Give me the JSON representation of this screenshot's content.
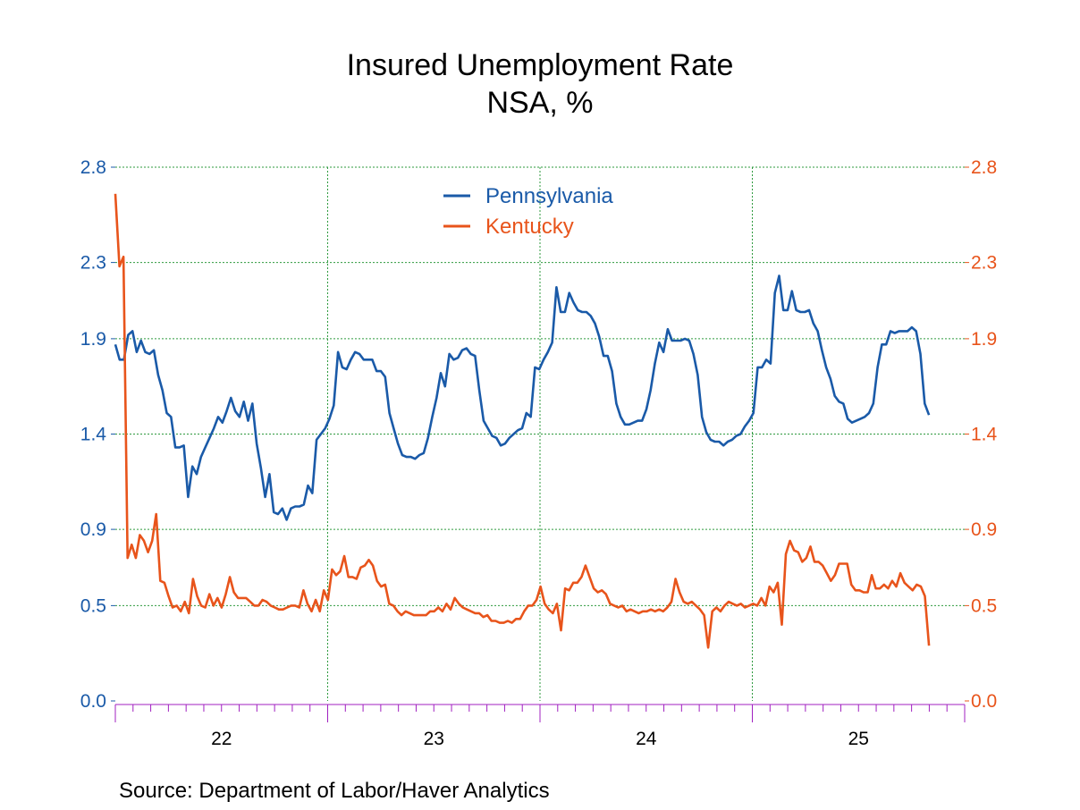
{
  "chart_data": {
    "type": "line",
    "title": "Insured Unemployment Rate",
    "subtitle": "NSA, %",
    "source": "Source:  Department of Labor/Haver Analytics",
    "x_start_year": 2021.5,
    "x_end_year": 2025.5,
    "x_tick_labels": [
      {
        "label": "22",
        "year": 2022.0
      },
      {
        "label": "23",
        "year": 2023.0
      },
      {
        "label": "24",
        "year": 2024.0
      },
      {
        "label": "25",
        "year": 2025.0
      }
    ],
    "y_left": {
      "ticks": [
        "0.0",
        "0.5",
        "0.9",
        "1.4",
        "1.9",
        "2.3",
        "2.8"
      ],
      "ylim": [
        0,
        2.8
      ]
    },
    "y_right": {
      "ticks": [
        "0.0",
        "0.5",
        "0.9",
        "1.4",
        "1.9",
        "2.3",
        "2.8"
      ],
      "ylim": [
        0,
        2.8
      ]
    },
    "grid": true,
    "legend_placement": "top-center",
    "series": [
      {
        "name": "Pennsylvania",
        "color": "#1a5aa8",
        "axis": "left",
        "values": [
          1.87,
          1.79,
          1.79,
          1.92,
          1.94,
          1.83,
          1.89,
          1.83,
          1.82,
          1.84,
          1.71,
          1.63,
          1.51,
          1.49,
          1.33,
          1.33,
          1.34,
          1.07,
          1.23,
          1.19,
          1.28,
          1.33,
          1.38,
          1.43,
          1.49,
          1.46,
          1.52,
          1.59,
          1.52,
          1.49,
          1.57,
          1.47,
          1.56,
          1.35,
          1.22,
          1.07,
          1.19,
          0.99,
          0.98,
          1.01,
          0.95,
          1.01,
          1.02,
          1.02,
          1.03,
          1.13,
          1.09,
          1.37,
          1.4,
          1.43,
          1.48,
          1.55,
          1.83,
          1.75,
          1.74,
          1.79,
          1.83,
          1.82,
          1.79,
          1.79,
          1.79,
          1.73,
          1.73,
          1.7,
          1.51,
          1.43,
          1.35,
          1.29,
          1.28,
          1.28,
          1.27,
          1.29,
          1.3,
          1.38,
          1.49,
          1.59,
          1.72,
          1.65,
          1.82,
          1.79,
          1.8,
          1.84,
          1.85,
          1.82,
          1.81,
          1.63,
          1.47,
          1.43,
          1.39,
          1.38,
          1.34,
          1.35,
          1.38,
          1.4,
          1.42,
          1.43,
          1.51,
          1.49,
          1.75,
          1.74,
          1.79,
          1.83,
          1.88,
          2.17,
          2.04,
          2.04,
          2.14,
          2.09,
          2.05,
          2.04,
          2.04,
          2.02,
          1.98,
          1.91,
          1.81,
          1.81,
          1.73,
          1.56,
          1.49,
          1.45,
          1.45,
          1.46,
          1.47,
          1.47,
          1.53,
          1.63,
          1.77,
          1.88,
          1.83,
          1.95,
          1.89,
          1.89,
          1.89,
          1.9,
          1.89,
          1.82,
          1.71,
          1.49,
          1.41,
          1.37,
          1.36,
          1.36,
          1.34,
          1.36,
          1.37,
          1.39,
          1.4,
          1.44,
          1.47,
          1.51,
          1.75,
          1.75,
          1.79,
          1.77,
          2.14,
          2.23,
          2.05,
          2.05,
          2.15,
          2.05,
          2.04,
          2.04,
          2.05,
          1.98,
          1.94,
          1.84,
          1.75,
          1.69,
          1.6,
          1.57,
          1.56,
          1.48,
          1.46,
          1.47,
          1.48,
          1.49,
          1.51,
          1.56,
          1.75,
          1.87,
          1.87,
          1.94,
          1.93,
          1.94,
          1.94,
          1.94,
          1.96,
          1.94,
          1.82,
          1.56,
          1.5
        ]
      },
      {
        "name": "Kentucky",
        "color": "#e8541b",
        "axis": "left",
        "values": [
          2.66,
          2.28,
          2.33,
          0.75,
          0.82,
          0.75,
          0.87,
          0.84,
          0.78,
          0.84,
          0.98,
          0.63,
          0.62,
          0.55,
          0.49,
          0.5,
          0.47,
          0.52,
          0.46,
          0.64,
          0.55,
          0.5,
          0.49,
          0.56,
          0.5,
          0.54,
          0.49,
          0.56,
          0.65,
          0.57,
          0.54,
          0.54,
          0.54,
          0.52,
          0.5,
          0.5,
          0.53,
          0.52,
          0.5,
          0.49,
          0.48,
          0.48,
          0.49,
          0.5,
          0.5,
          0.49,
          0.58,
          0.51,
          0.47,
          0.53,
          0.47,
          0.58,
          0.53,
          0.69,
          0.66,
          0.68,
          0.76,
          0.65,
          0.65,
          0.64,
          0.7,
          0.71,
          0.74,
          0.71,
          0.63,
          0.6,
          0.61,
          0.51,
          0.5,
          0.47,
          0.45,
          0.47,
          0.46,
          0.45,
          0.45,
          0.45,
          0.45,
          0.47,
          0.47,
          0.49,
          0.47,
          0.51,
          0.48,
          0.54,
          0.51,
          0.49,
          0.48,
          0.47,
          0.46,
          0.46,
          0.44,
          0.45,
          0.42,
          0.42,
          0.41,
          0.41,
          0.42,
          0.41,
          0.43,
          0.43,
          0.47,
          0.5,
          0.5,
          0.53,
          0.6,
          0.51,
          0.48,
          0.46,
          0.51,
          0.37,
          0.59,
          0.58,
          0.62,
          0.62,
          0.65,
          0.71,
          0.65,
          0.59,
          0.57,
          0.58,
          0.56,
          0.51,
          0.5,
          0.49,
          0.5,
          0.47,
          0.48,
          0.47,
          0.46,
          0.47,
          0.47,
          0.48,
          0.47,
          0.48,
          0.47,
          0.49,
          0.52,
          0.64,
          0.57,
          0.52,
          0.51,
          0.52,
          0.5,
          0.48,
          0.45,
          0.28,
          0.47,
          0.49,
          0.47,
          0.5,
          0.52,
          0.51,
          0.5,
          0.51,
          0.49,
          0.5,
          0.51,
          0.5,
          0.54,
          0.5,
          0.6,
          0.57,
          0.62,
          0.4,
          0.77,
          0.84,
          0.79,
          0.78,
          0.73,
          0.75,
          0.81,
          0.73,
          0.73,
          0.71,
          0.67,
          0.63,
          0.66,
          0.72,
          0.72,
          0.72,
          0.61,
          0.58,
          0.58,
          0.57,
          0.57,
          0.66,
          0.59,
          0.59,
          0.61,
          0.59,
          0.63,
          0.6,
          0.67,
          0.62,
          0.6,
          0.58,
          0.61,
          0.6,
          0.55,
          0.29
        ]
      }
    ]
  }
}
